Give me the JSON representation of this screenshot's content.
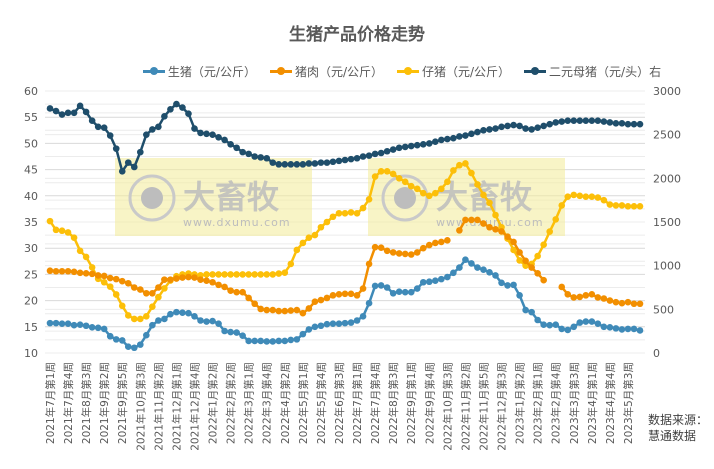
{
  "chart_data": {
    "type": "line",
    "title": "生猪产品价格走势",
    "xlabel": "",
    "ylabel": "",
    "y_left": {
      "range": [
        10,
        60
      ],
      "ticks": [
        10,
        15,
        20,
        25,
        30,
        35,
        40,
        45,
        50,
        55,
        60
      ]
    },
    "y_right": {
      "range": [
        0,
        3000
      ],
      "ticks": [
        0,
        500,
        1000,
        1500,
        2000,
        2500,
        3000
      ]
    },
    "grid": true,
    "legend_position": "top",
    "tick_labels": [
      "2021年7月第1周",
      "2021年7月第4周",
      "2021年8月第3周",
      "2021年9月第2周",
      "2021年9月第5周",
      "2021年10月第3周",
      "2021年11月第2周",
      "2021年12月第1周",
      "2021年12月第4周",
      "2022年1月第2周",
      "2022年2月第2周",
      "2022年3月第1周",
      "2022年3月第4周",
      "2022年4月第2周",
      "2022年5月第1周",
      "2022年5月第4周",
      "2022年6月第3周",
      "2022年7月第1周",
      "2022年7月第4周",
      "2022年8月第3周",
      "2022年9月第1周",
      "2022年9月第4周",
      "2022年10月第3周",
      "2022年11月第2周",
      "2022年11月第5周",
      "2022年12月第3周",
      "2023年1月第2周",
      "2023年2月第1周",
      "2023年2月第4周",
      "2023年3月第3周",
      "2023年4月第1周",
      "2023年4月第4周",
      "2023年5月第3周"
    ],
    "tick_every": 3,
    "series": [
      {
        "name": "生猪（元/公斤）",
        "axis": "left",
        "color": "#3f8ab8",
        "values": [
          15.7,
          15.7,
          15.6,
          15.6,
          15.3,
          15.4,
          15.2,
          14.9,
          14.8,
          14.6,
          13.2,
          12.6,
          12.4,
          11.2,
          11.0,
          11.6,
          13.4,
          15.3,
          16.2,
          16.5,
          17.4,
          17.8,
          17.7,
          17.6,
          17.0,
          16.2,
          16.0,
          16.1,
          15.6,
          14.2,
          14.0,
          13.9,
          13.3,
          12.3,
          12.3,
          12.3,
          12.2,
          12.2,
          12.3,
          12.3,
          12.5,
          12.6,
          13.6,
          14.5,
          15.0,
          15.2,
          15.5,
          15.6,
          15.6,
          15.7,
          15.8,
          16.2,
          17.0,
          19.5,
          22.8,
          22.9,
          22.5,
          21.4,
          21.7,
          21.6,
          21.6,
          22.3,
          23.5,
          23.6,
          23.8,
          24.1,
          24.5,
          25.3,
          26.3,
          27.8,
          27.1,
          26.3,
          25.9,
          25.4,
          24.8,
          23.4,
          22.9,
          23.0,
          21.0,
          18.2,
          17.8,
          16.3,
          15.4,
          15.3,
          15.4,
          14.6,
          14.4,
          15.0,
          15.8,
          16.0,
          16.0,
          15.6,
          15.0,
          14.9,
          14.7,
          14.5,
          14.6,
          14.6,
          14.3
        ]
      },
      {
        "name": "猪肉（元/公斤）",
        "axis": "left",
        "color": "#f28f00",
        "values": [
          25.7,
          25.6,
          25.6,
          25.6,
          25.5,
          25.3,
          25.2,
          25.1,
          24.8,
          24.7,
          24.3,
          24.1,
          23.7,
          23.3,
          22.5,
          22.1,
          21.4,
          21.4,
          22.5,
          24.0,
          24.0,
          24.2,
          24.4,
          24.5,
          24.4,
          24.0,
          23.8,
          23.5,
          23.0,
          22.6,
          21.9,
          21.6,
          21.6,
          20.5,
          19.4,
          18.4,
          18.2,
          18.2,
          18.0,
          18.0,
          18.1,
          18.2,
          17.6,
          18.5,
          19.8,
          20.1,
          20.5,
          21.0,
          21.2,
          21.3,
          21.3,
          21.0,
          22.3,
          27.0,
          30.2,
          30.1,
          29.5,
          29.2,
          29.0,
          28.9,
          28.8,
          29.2,
          30.0,
          30.6,
          31.0,
          31.2,
          31.5,
          null,
          33.4,
          35.4,
          35.4,
          35.4,
          34.7,
          34.0,
          33.6,
          33.2,
          32.2,
          31.2,
          29.2,
          27.6,
          26.3,
          25.2,
          23.9,
          null,
          null,
          22.6,
          21.2,
          20.6,
          20.7,
          21.0,
          21.2,
          20.6,
          20.4,
          20.0,
          19.7,
          19.5,
          19.7,
          19.4,
          19.4
        ]
      },
      {
        "name": "仔猪（元/公斤）",
        "axis": "right",
        "color": "#fcbf09",
        "values": [
          1510,
          1410,
          1400,
          1380,
          1320,
          1170,
          1100,
          980,
          850,
          810,
          760,
          670,
          540,
          430,
          390,
          390,
          420,
          530,
          640,
          740,
          830,
          880,
          900,
          910,
          900,
          890,
          900,
          900,
          900,
          900,
          900,
          900,
          900,
          900,
          900,
          900,
          900,
          900,
          910,
          920,
          1020,
          1180,
          1260,
          1320,
          1350,
          1440,
          1500,
          1560,
          1600,
          1600,
          1610,
          1600,
          1660,
          1760,
          2020,
          2080,
          2080,
          2050,
          2000,
          1960,
          1910,
          1880,
          1830,
          1800,
          1830,
          1880,
          1960,
          2090,
          2150,
          2170,
          2060,
          1930,
          1810,
          1720,
          1580,
          1440,
          1310,
          1180,
          1060,
          1000,
          1020,
          1110,
          1240,
          1390,
          1530,
          1690,
          1790,
          1810,
          1800,
          1790,
          1790,
          1780,
          1750,
          1700,
          1690,
          1690,
          1680,
          1680,
          1680
        ]
      },
      {
        "name": "二元母猪（元/头）右",
        "axis": "right",
        "color": "#1f4e6b",
        "values": [
          2800,
          2770,
          2730,
          2750,
          2750,
          2830,
          2760,
          2660,
          2590,
          2580,
          2490,
          2340,
          2080,
          2180,
          2130,
          2300,
          2500,
          2560,
          2590,
          2710,
          2790,
          2850,
          2810,
          2740,
          2570,
          2520,
          2510,
          2500,
          2470,
          2440,
          2390,
          2350,
          2300,
          2280,
          2250,
          2240,
          2230,
          2180,
          2160,
          2160,
          2160,
          2160,
          2160,
          2170,
          2170,
          2180,
          2180,
          2190,
          2200,
          2210,
          2220,
          2230,
          2250,
          2260,
          2280,
          2290,
          2310,
          2330,
          2350,
          2360,
          2370,
          2380,
          2390,
          2400,
          2420,
          2440,
          2450,
          2460,
          2480,
          2490,
          2510,
          2530,
          2550,
          2560,
          2570,
          2590,
          2600,
          2610,
          2600,
          2570,
          2560,
          2580,
          2600,
          2620,
          2640,
          2650,
          2660,
          2660,
          2660,
          2660,
          2660,
          2660,
          2650,
          2640,
          2630,
          2630,
          2620,
          2620,
          2620
        ]
      }
    ],
    "annotations": [
      "大畜牧 www.dxumu.com"
    ]
  },
  "header": {
    "title": "生猪产品价格走势"
  },
  "legend": {
    "items": [
      {
        "label": "生猪（元/公斤）",
        "color": "#3f8ab8"
      },
      {
        "label": "猪肉（元/公斤）",
        "color": "#f28f00"
      },
      {
        "label": "仔猪（元/公斤）",
        "color": "#fcbf09"
      },
      {
        "label": "二元母猪（元/头）右",
        "color": "#1f4e6b"
      }
    ]
  },
  "watermark": {
    "brand": "大畜牧",
    "url": "www.dxumu.com"
  },
  "source": {
    "line1": "数据来源：",
    "line2": "慧通数据"
  }
}
